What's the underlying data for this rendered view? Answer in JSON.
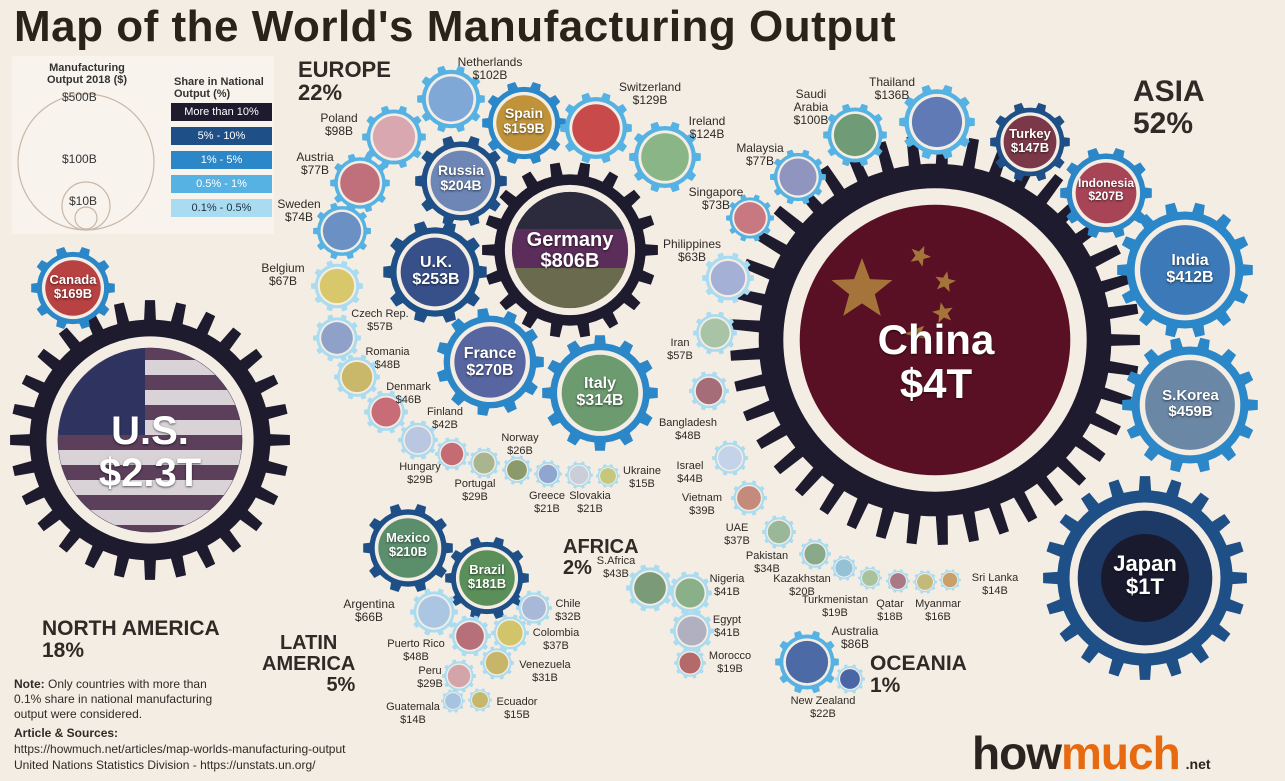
{
  "title": "Map of the World's Manufacturing Output",
  "legend": {
    "size_title_1": "Manufacturing",
    "size_title_2": "Output 2018 ($)",
    "size_500": "$500B",
    "size_100": "$100B",
    "size_10": "$10B",
    "share_title_1": "Share in National",
    "share_title_2": "Output (%)",
    "share_rows": [
      "More than 10%",
      "5% - 10%",
      "1% - 5%",
      "0.5% - 1%",
      "0.1% - 0.5%"
    ],
    "share_colors": [
      "#1f1b2e",
      "#1e4f86",
      "#2b87c8",
      "#55b2e3",
      "#a9dbf1"
    ]
  },
  "regions": {
    "europe_name": "EUROPE",
    "europe_pct": "22%",
    "asia_name": "ASIA",
    "asia_pct": "52%",
    "africa_name": "AFRICA",
    "africa_pct": "2%",
    "oceania_name": "OCEANIA",
    "oceania_pct": "1%",
    "na_name": "NORTH AMERICA",
    "na_pct": "18%",
    "la_name_1": "LATIN",
    "la_name_2": "AMERICA",
    "la_pct": "5%"
  },
  "big": {
    "china_name": "China",
    "china_val": "$4T",
    "us_name": "U.S.",
    "us_val": "$2.3T",
    "japan_name": "Japan",
    "japan_val": "$1T",
    "germany_name": "Germany",
    "germany_val": "$806B"
  },
  "gears": [
    {
      "name": "India",
      "val": "$412B"
    },
    {
      "name": "S.Korea",
      "val": "$459B"
    },
    {
      "name": "Indonesia",
      "val": "$207B"
    },
    {
      "name": "Turkey",
      "val": "$147B"
    },
    {
      "name": "Italy",
      "val": "$314B"
    },
    {
      "name": "France",
      "val": "$270B"
    },
    {
      "name": "U.K.",
      "val": "$253B"
    },
    {
      "name": "Russia",
      "val": "$204B"
    },
    {
      "name": "Spain",
      "val": "$159B"
    },
    {
      "name": "Canada",
      "val": "$169B"
    },
    {
      "name": "Mexico",
      "val": "$210B"
    },
    {
      "name": "Brazil",
      "val": "$181B"
    }
  ],
  "labels": [
    {
      "name": "Netherlands",
      "val": "$102B"
    },
    {
      "name": "Switzerland",
      "val": "$129B"
    },
    {
      "name": "Ireland",
      "val": "$124B"
    },
    {
      "name": "Poland",
      "val": "$98B"
    },
    {
      "name": "Austria",
      "val": "$77B"
    },
    {
      "name": "Sweden",
      "val": "$74B"
    },
    {
      "name": "Belgium",
      "val": "$67B"
    },
    {
      "name": "Czech Rep.",
      "val": "$57B"
    },
    {
      "name": "Romania",
      "val": "$48B"
    },
    {
      "name": "Denmark",
      "val": "$46B"
    },
    {
      "name": "Finland",
      "val": "$42B"
    },
    {
      "name": "Norway",
      "val": "$26B"
    },
    {
      "name": "Hungary",
      "val": "$29B"
    },
    {
      "name": "Portugal",
      "val": "$29B"
    },
    {
      "name": "Greece",
      "val": "$21B"
    },
    {
      "name": "Slovakia",
      "val": "$21B"
    },
    {
      "name": "Ukraine",
      "val": "$15B"
    },
    {
      "name": "Saudi Arabia",
      "val": "$100B"
    },
    {
      "name": "Thailand",
      "val": "$136B"
    },
    {
      "name": "Malaysia",
      "val": "$77B"
    },
    {
      "name": "Singapore",
      "val": "$73B"
    },
    {
      "name": "Philippines",
      "val": "$63B"
    },
    {
      "name": "Iran",
      "val": "$57B"
    },
    {
      "name": "Bangladesh",
      "val": "$48B"
    },
    {
      "name": "Israel",
      "val": "$44B"
    },
    {
      "name": "Vietnam",
      "val": "$39B"
    },
    {
      "name": "UAE",
      "val": "$37B"
    },
    {
      "name": "Pakistan",
      "val": "$34B"
    },
    {
      "name": "Kazakhstan",
      "val": "$20B"
    },
    {
      "name": "Turkmenistan",
      "val": "$19B"
    },
    {
      "name": "Qatar",
      "val": "$18B"
    },
    {
      "name": "Myanmar",
      "val": "$16B"
    },
    {
      "name": "Sri Lanka",
      "val": "$14B"
    },
    {
      "name": "S.Africa",
      "val": "$43B"
    },
    {
      "name": "Nigeria",
      "val": "$41B"
    },
    {
      "name": "Egypt",
      "val": "$41B"
    },
    {
      "name": "Morocco",
      "val": "$19B"
    },
    {
      "name": "Australia",
      "val": "$86B"
    },
    {
      "name": "New Zealand",
      "val": "$22B"
    },
    {
      "name": "Argentina",
      "val": "$66B"
    },
    {
      "name": "Chile",
      "val": "$32B"
    },
    {
      "name": "Colombia",
      "val": "$37B"
    },
    {
      "name": "Puerto Rico",
      "val": "$48B"
    },
    {
      "name": "Venezuela",
      "val": "$31B"
    },
    {
      "name": "Peru",
      "val": "$29B"
    },
    {
      "name": "Guatemala",
      "val": "$14B"
    },
    {
      "name": "Ecuador",
      "val": "$15B"
    }
  ],
  "note": {
    "note_label": "Note:",
    "note_text_1": " Only countries with more than",
    "note_text_2": "0.1% share in national manufacturing",
    "note_text_3": "output were considered.",
    "sources_title": "Article & Sources:",
    "source_1": "https://howmuch.net/articles/map-worlds-manufacturing-output",
    "source_2": "United Nations Statistics Division - https://unstats.un.org/"
  },
  "logo": {
    "how": "how",
    "much": "much",
    "net": ".net"
  }
}
